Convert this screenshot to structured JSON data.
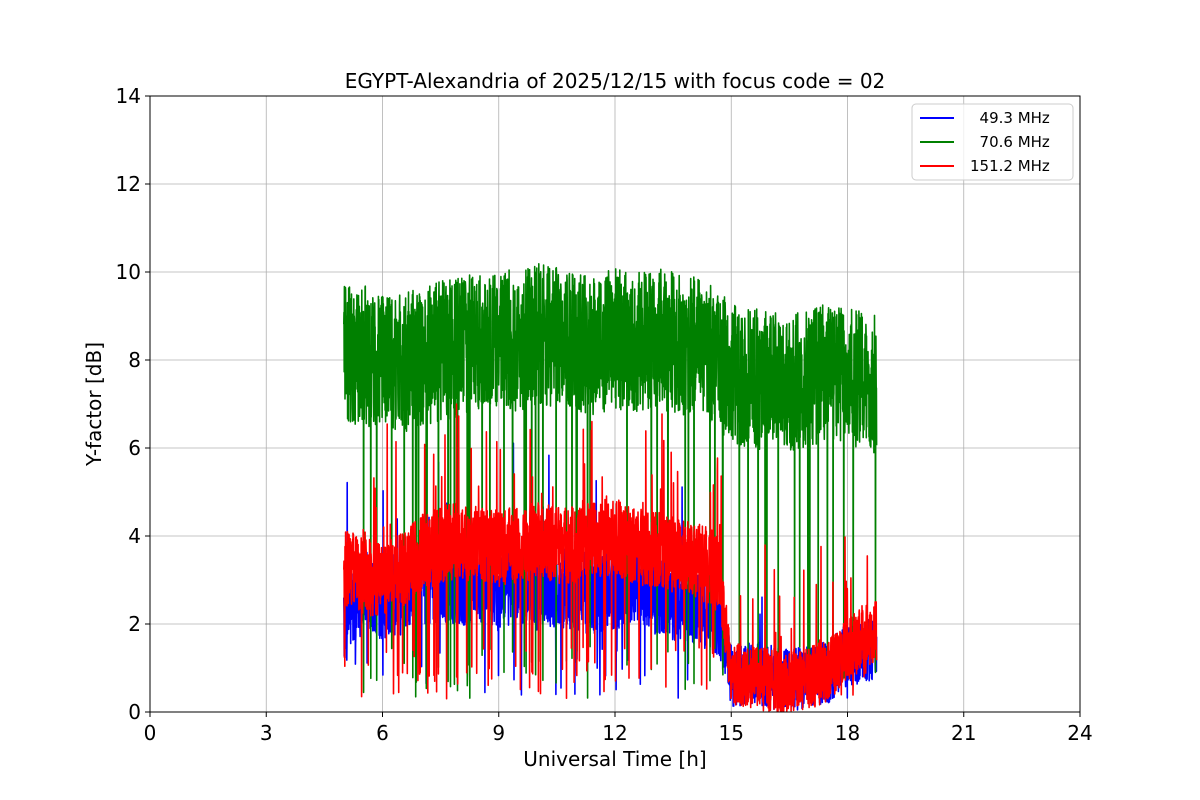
{
  "chart_data": {
    "type": "line",
    "title": "EGYPT-Alexandria of 2025/12/15 with focus code = 02",
    "xlabel": "Universal Time [h]",
    "ylabel": "Y-factor [dB]",
    "xlim": [
      0,
      24
    ],
    "ylim": [
      0,
      14
    ],
    "xticks": [
      0,
      3,
      6,
      9,
      12,
      15,
      18,
      21,
      24
    ],
    "yticks": [
      0,
      2,
      4,
      6,
      8,
      10,
      12,
      14
    ],
    "grid": true,
    "legend_position": "top-right",
    "series": [
      {
        "name": "  49.3 MHz",
        "color": "#0000ff",
        "x": [
          5.0,
          5.5,
          6.0,
          6.5,
          7.0,
          7.5,
          8.0,
          8.5,
          9.0,
          9.5,
          10.0,
          10.5,
          11.0,
          11.5,
          12.0,
          12.5,
          13.0,
          13.5,
          14.0,
          14.5,
          14.7,
          15.0,
          15.5,
          16.0,
          16.5,
          17.0,
          17.5,
          18.0,
          18.5,
          18.75
        ],
        "y": [
          2.0,
          2.8,
          2.6,
          2.7,
          2.9,
          3.0,
          2.9,
          3.0,
          2.8,
          3.0,
          2.8,
          2.9,
          2.8,
          2.7,
          2.8,
          3.0,
          2.7,
          2.6,
          2.5,
          2.4,
          2.0,
          0.8,
          0.9,
          0.8,
          0.7,
          0.8,
          0.9,
          1.3,
          1.4,
          1.4
        ]
      },
      {
        "name": "  70.6 MHz",
        "color": "#008000",
        "x": [
          5.0,
          5.5,
          6.0,
          6.5,
          7.0,
          7.5,
          8.0,
          8.5,
          9.0,
          9.5,
          10.0,
          10.5,
          11.0,
          11.5,
          12.0,
          12.5,
          13.0,
          13.5,
          14.0,
          14.5,
          15.0,
          15.5,
          16.0,
          16.5,
          17.0,
          17.5,
          18.0,
          18.5,
          18.75
        ],
        "y": [
          8.2,
          8.1,
          8.0,
          7.9,
          8.1,
          8.2,
          8.3,
          8.4,
          8.5,
          8.4,
          8.6,
          8.5,
          8.4,
          8.3,
          8.5,
          8.4,
          8.5,
          8.4,
          8.3,
          8.1,
          7.7,
          7.6,
          7.5,
          7.5,
          7.6,
          7.8,
          7.6,
          7.5,
          7.4
        ]
      },
      {
        "name": "151.2 MHz",
        "color": "#ff0000",
        "x": [
          5.0,
          5.5,
          6.0,
          6.5,
          7.0,
          7.5,
          8.0,
          8.5,
          9.0,
          9.5,
          10.0,
          10.5,
          11.0,
          11.5,
          12.0,
          12.5,
          13.0,
          13.5,
          14.0,
          14.5,
          14.7,
          15.0,
          15.5,
          16.0,
          16.5,
          17.0,
          17.5,
          18.0,
          18.5,
          18.75
        ],
        "y": [
          3.3,
          3.1,
          3.0,
          3.2,
          3.6,
          3.8,
          3.9,
          3.8,
          3.7,
          3.8,
          3.9,
          3.8,
          3.8,
          3.9,
          4.0,
          3.8,
          3.7,
          3.6,
          3.5,
          3.3,
          3.0,
          0.9,
          0.8,
          0.7,
          0.6,
          0.8,
          0.9,
          1.4,
          1.8,
          1.8
        ]
      }
    ]
  }
}
